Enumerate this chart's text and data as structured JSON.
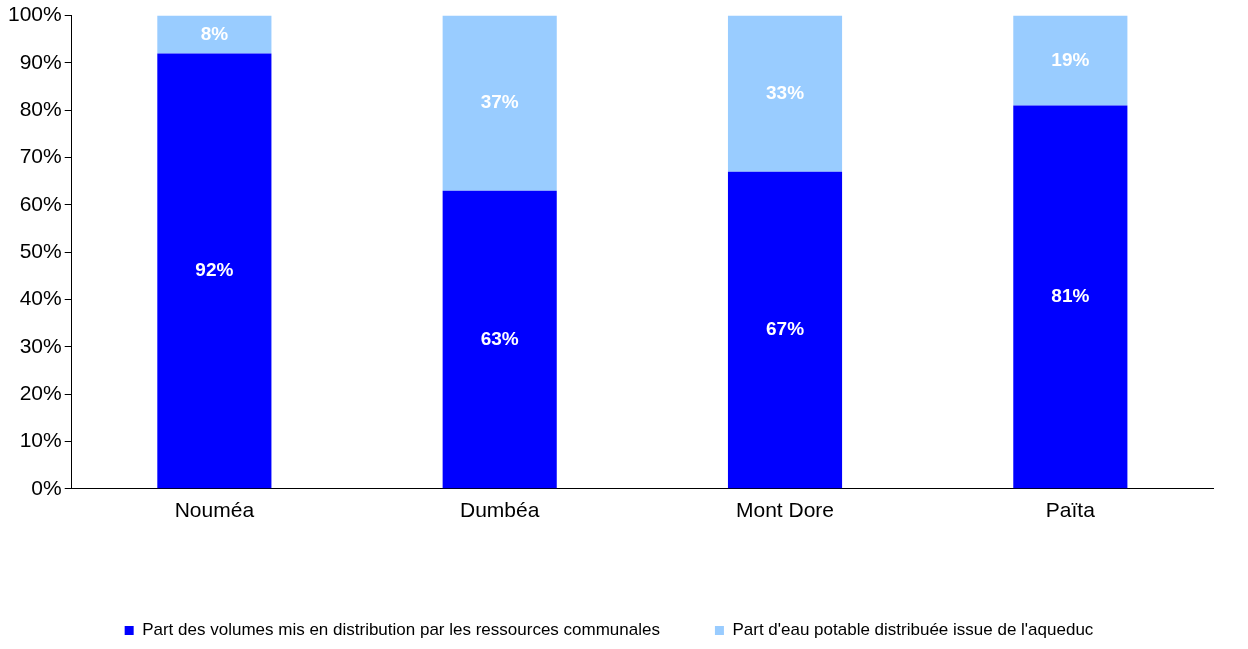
{
  "chart_data": {
    "type": "bar",
    "stacked": true,
    "categories": [
      "Nouméa",
      "Dumbéa",
      "Mont Dore",
      "Païta"
    ],
    "series": [
      {
        "name": "Part des volumes mis en distribution par les ressources communales",
        "color": "#0000ff",
        "values": [
          92,
          63,
          67,
          81
        ],
        "value_labels": [
          "92%",
          "63%",
          "67%",
          "81%"
        ]
      },
      {
        "name": "Part d'eau potable distribuée issue de l'aqueduc",
        "color": "#99ccff",
        "values": [
          8,
          37,
          33,
          19
        ],
        "value_labels": [
          "8%",
          "37%",
          "33%",
          "19%"
        ]
      }
    ],
    "ylim": [
      0,
      100
    ],
    "yticks": [
      {
        "value": 0,
        "label": "0%"
      },
      {
        "value": 10,
        "label": "10%"
      },
      {
        "value": 20,
        "label": "20%"
      },
      {
        "value": 30,
        "label": "30%"
      },
      {
        "value": 40,
        "label": "40%"
      },
      {
        "value": 50,
        "label": "50%"
      },
      {
        "value": 60,
        "label": "60%"
      },
      {
        "value": 70,
        "label": "70%"
      },
      {
        "value": 80,
        "label": "80%"
      },
      {
        "value": 90,
        "label": "90%"
      },
      {
        "value": 100,
        "label": "100%"
      }
    ],
    "grid": false,
    "legend": "bottom"
  }
}
